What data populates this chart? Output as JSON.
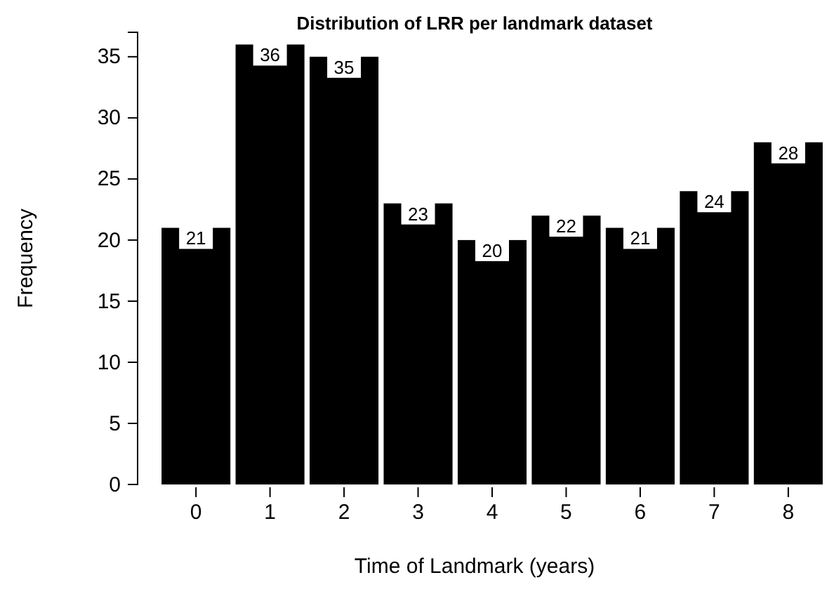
{
  "chart_data": {
    "type": "bar",
    "title": "Distribution of LRR per landmark dataset",
    "xlabel": "Time of Landmark (years)",
    "ylabel": "Frequency",
    "categories": [
      "0",
      "1",
      "2",
      "3",
      "4",
      "5",
      "6",
      "7",
      "8"
    ],
    "values": [
      21,
      36,
      35,
      23,
      20,
      22,
      21,
      24,
      28
    ],
    "color": "#000000",
    "data_labels": true,
    "ylim": [
      0,
      37
    ],
    "yticks": [
      0,
      5,
      10,
      15,
      20,
      25,
      30,
      35
    ],
    "grid": false
  }
}
